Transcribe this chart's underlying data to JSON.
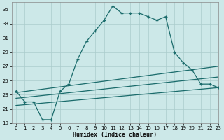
{
  "xlabel": "Humidex (Indice chaleur)",
  "background_color": "#cce8e8",
  "grid_color": "#aacccc",
  "line_color": "#1a6b6b",
  "x_main": [
    0,
    1,
    2,
    3,
    4,
    5,
    6,
    7,
    8,
    9,
    10,
    11,
    12,
    13,
    14,
    15,
    16,
    17,
    18,
    19,
    20,
    21,
    22,
    23
  ],
  "y_main": [
    23.5,
    22.0,
    22.0,
    19.5,
    19.5,
    23.5,
    24.5,
    28.0,
    30.5,
    32.0,
    33.5,
    35.5,
    34.5,
    34.5,
    34.5,
    34.0,
    33.5,
    34.0,
    29.0,
    27.5,
    26.5,
    24.5,
    24.5,
    24.0
  ],
  "line2_x": [
    0,
    23
  ],
  "line2_y": [
    23.3,
    27.0
  ],
  "line3_x": [
    0,
    23
  ],
  "line3_y": [
    22.5,
    25.5
  ],
  "line4_x": [
    0,
    23
  ],
  "line4_y": [
    21.5,
    24.0
  ],
  "ylim": [
    19,
    36
  ],
  "xlim": [
    -0.5,
    23
  ],
  "yticks": [
    19,
    21,
    23,
    25,
    27,
    29,
    31,
    33,
    35
  ],
  "xticks": [
    0,
    1,
    2,
    3,
    4,
    5,
    6,
    7,
    8,
    9,
    10,
    11,
    12,
    13,
    14,
    15,
    16,
    17,
    18,
    19,
    20,
    21,
    22,
    23
  ],
  "tick_fontsize": 5,
  "xlabel_fontsize": 6
}
